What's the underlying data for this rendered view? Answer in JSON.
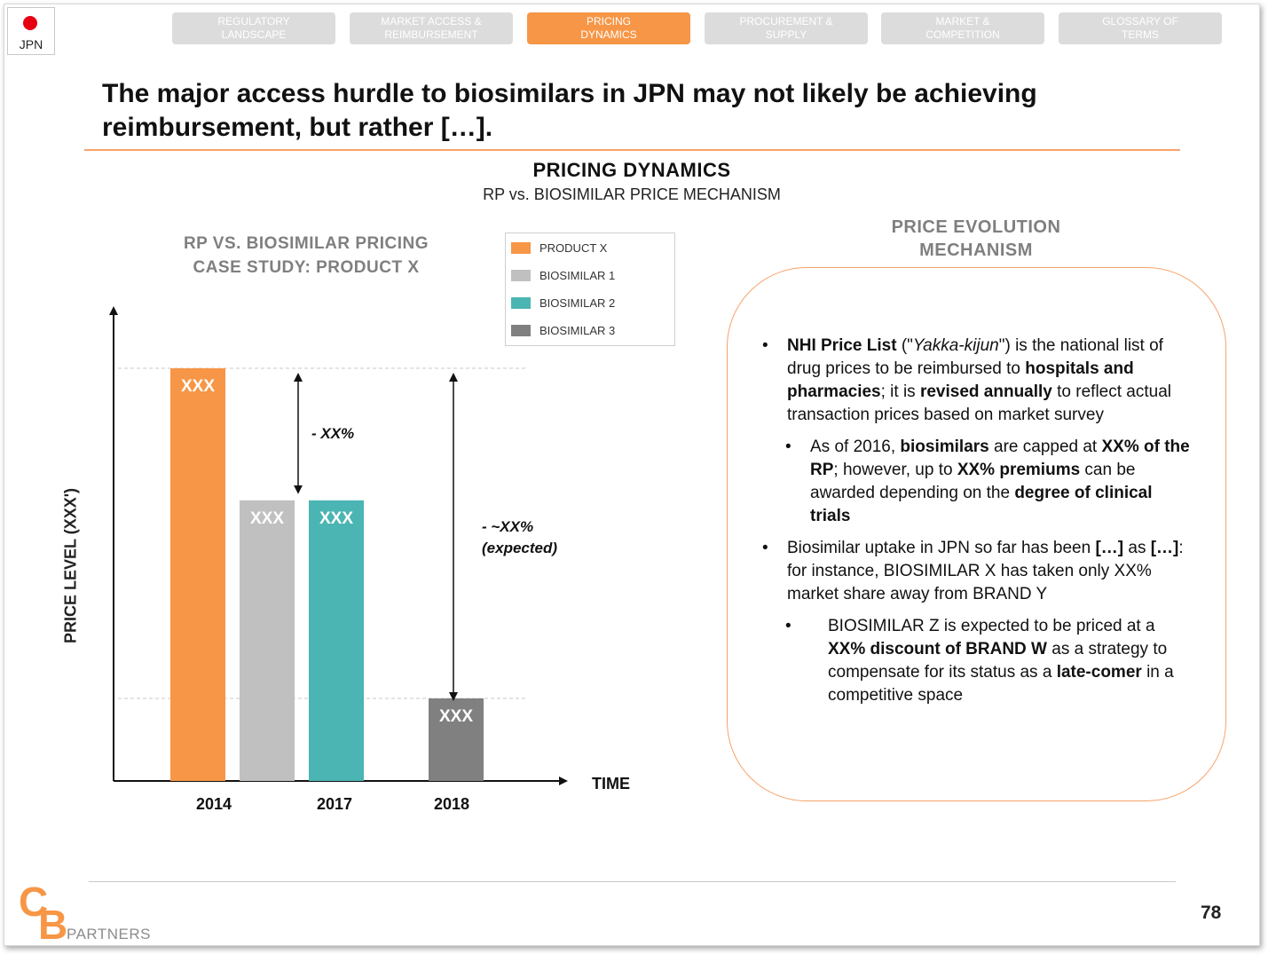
{
  "flag": {
    "code": "JPN"
  },
  "tabs": [
    {
      "label": "REGULATORY\nLANDSCAPE",
      "active": false
    },
    {
      "label": "MARKET ACCESS &\nREIMBURSEMENT",
      "active": false
    },
    {
      "label": "PRICING\nDYNAMICS",
      "active": true
    },
    {
      "label": "PROCUREMENT &\nSUPPLY",
      "active": false
    },
    {
      "label": "MARKET &\nCOMPETITION",
      "active": false
    },
    {
      "label": "GLOSSARY OF\nTERMS",
      "active": false
    }
  ],
  "headline": "The major access hurdle to biosimilars in JPN may not likely be achieving reimbursement, but rather […].",
  "section": {
    "title": "PRICING DYNAMICS",
    "subtitle": "RP vs. BIOSIMILAR PRICE MECHANISM"
  },
  "case_study": {
    "title_line1": "RP VS. BIOSIMILAR PRICING",
    "title_line2": "CASE STUDY: PRODUCT X"
  },
  "chart_data": {
    "type": "bar",
    "ylabel": "PRICE LEVEL (XXX')",
    "xlabel": "TIME",
    "grid": false,
    "legend_position": "top-right",
    "ylim": [
      0,
      100
    ],
    "categories": [
      "2014",
      "2017",
      "2018"
    ],
    "series": [
      {
        "name": "PRODUCT X",
        "color": "#f79646",
        "category": "2014",
        "value": 100,
        "label": "XXX"
      },
      {
        "name": "BIOSIMILAR 1",
        "color": "#c0c0c0",
        "category": "2017",
        "value": 68,
        "label": "XXX"
      },
      {
        "name": "BIOSIMILAR 2",
        "color": "#4bb5b3",
        "category": "2017",
        "value": 68,
        "label": "XXX"
      },
      {
        "name": "BIOSIMILAR 3",
        "color": "#808080",
        "category": "2018",
        "value": 20,
        "label": "XXX"
      }
    ],
    "annotations": [
      {
        "text": "- XX%"
      },
      {
        "text_line1": "- ~XX%",
        "text_line2": "(expected)"
      }
    ]
  },
  "evolution": {
    "title_line1": "PRICE EVOLUTION",
    "title_line2": "MECHANISM",
    "b1": {
      "t1": "NHI Price List",
      "t2": " (\"",
      "t3": "Yakka-kijun",
      "t4": "\") is the national list of drug prices to be reimbursed to ",
      "t5": "hospitals and pharmacies",
      "t6": "; it is ",
      "t7": "revised annually",
      "t8": " to reflect actual transaction prices based on market survey"
    },
    "b1a": {
      "t1": "As of 2016, ",
      "t2": "biosimilars",
      "t3": " are capped at ",
      "t4": "XX% of the RP",
      "t5": "; however, up to ",
      "t6": "XX% premiums",
      "t7": " can be awarded depending on the ",
      "t8": "degree of clinical trials"
    },
    "b2": {
      "t1": "Biosimilar uptake in JPN so far has been ",
      "t2": "[…]",
      "t3": " as ",
      "t4": "[…]",
      "t5": ": for instance, BIOSIMILAR X has taken only XX% market share away from BRAND Y"
    },
    "b2a": {
      "t1": "BIOSIMILAR Z is expected to be priced at a ",
      "t2": "XX% discount of BRAND W",
      "t3": " as a strategy to compensate for its status as a ",
      "t4": "late-comer",
      "t5": " in a competitive space"
    }
  },
  "footer": {
    "logo_c": "C",
    "logo_b": "B",
    "logo_text": "PARTNERS",
    "page_number": "78"
  }
}
